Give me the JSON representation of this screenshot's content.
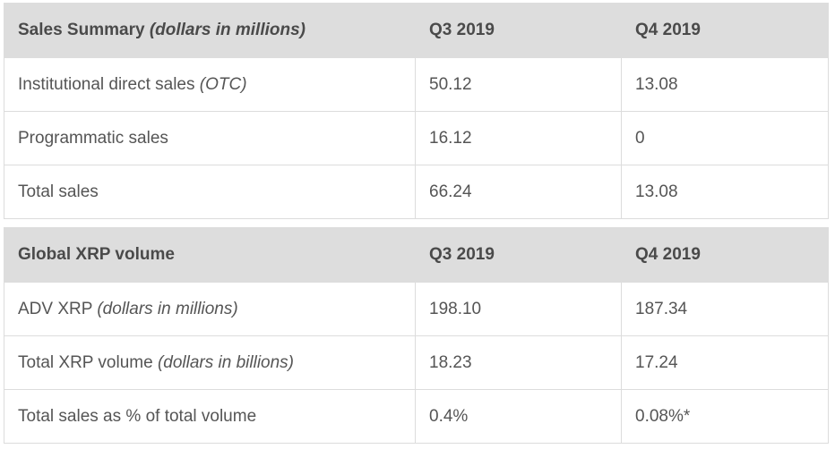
{
  "sales_table": {
    "header": {
      "label": "Sales Summary",
      "label_note": "(dollars in millions)",
      "col1": "Q3 2019",
      "col2": "Q4 2019"
    },
    "rows": [
      {
        "label": "Institutional direct sales",
        "note": "(OTC)",
        "q3": "50.12",
        "q4": "13.08"
      },
      {
        "label": "Programmatic sales",
        "note": "",
        "q3": "16.12",
        "q4": "0"
      },
      {
        "label": "Total sales",
        "note": "",
        "q3": "66.24",
        "q4": "13.08"
      }
    ]
  },
  "volume_table": {
    "header": {
      "label": "Global XRP volume",
      "col1": "Q3 2019",
      "col2": "Q4 2019"
    },
    "rows": [
      {
        "label": "ADV XRP",
        "note": "(dollars in millions)",
        "q3": "198.10",
        "q4": "187.34"
      },
      {
        "label": "Total XRP volume",
        "note": "(dollars in billions)",
        "q3": "18.23",
        "q4": "17.24"
      },
      {
        "label": "Total sales as % of total volume",
        "note": "",
        "q3": "0.4%",
        "q4": "0.08%*"
      }
    ]
  },
  "colors": {
    "header_bg": "#dddddd",
    "border": "#dcdcdc",
    "text": "#555555"
  }
}
